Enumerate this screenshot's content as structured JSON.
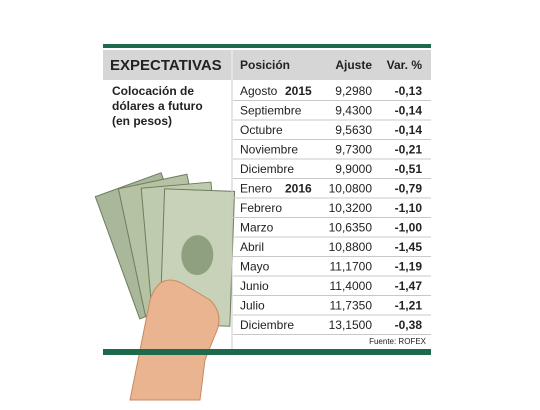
{
  "header": {
    "title": "EXPECTATIVAS",
    "subtitle_lines": [
      "Colocación de",
      "dólares a futuro",
      "(en pesos)"
    ]
  },
  "table": {
    "columns": [
      "Posición",
      "Ajuste",
      "Var. %"
    ],
    "rows": [
      {
        "position": "Agosto",
        "year": "2015",
        "adjust": "9,2980",
        "change": "-0,13"
      },
      {
        "position": "Septiembre",
        "adjust": "9,4300",
        "change": "-0,14"
      },
      {
        "position": "Octubre",
        "adjust": "9,5630",
        "change": "-0,14"
      },
      {
        "position": "Noviembre",
        "adjust": "9,7300",
        "change": "-0,21"
      },
      {
        "position": "Diciembre",
        "adjust": "9,9000",
        "change": "-0,51"
      },
      {
        "position": "Enero",
        "year": "2016",
        "adjust": "10,0800",
        "change": "-0,79"
      },
      {
        "position": "Febrero",
        "adjust": "10,3200",
        "change": "-1,10"
      },
      {
        "position": "Marzo",
        "adjust": "10,6350",
        "change": "-1,00"
      },
      {
        "position": "Abril",
        "adjust": "10,8800",
        "change": "-1,45"
      },
      {
        "position": "Mayo",
        "adjust": "11,1700",
        "change": "-1,19"
      },
      {
        "position": "Junio",
        "adjust": "11,4000",
        "change": "-1,47"
      },
      {
        "position": "Julio",
        "adjust": "11,7350",
        "change": "-1,21"
      },
      {
        "position": "Diciembre",
        "adjust": "13,1500",
        "change": "-0,38"
      }
    ]
  },
  "source": "Fuente: ROFEX"
}
